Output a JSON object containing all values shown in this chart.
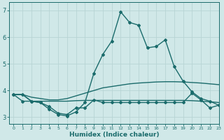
{
  "xlabel": "Humidex (Indice chaleur)",
  "bg_color": "#d0e8e8",
  "grid_color": "#b8d4d4",
  "line_color": "#1a6b6b",
  "xlim": [
    -0.5,
    23
  ],
  "ylim": [
    2.75,
    7.3
  ],
  "xticks": [
    0,
    1,
    2,
    3,
    4,
    5,
    6,
    7,
    8,
    9,
    10,
    11,
    12,
    13,
    14,
    15,
    16,
    17,
    18,
    19,
    20,
    21,
    22,
    23
  ],
  "yticks": [
    3,
    4,
    5,
    6,
    7
  ],
  "lines": [
    {
      "x": [
        0,
        1,
        2,
        3,
        4,
        5,
        6,
        7,
        8,
        9,
        10,
        11,
        12,
        13,
        14,
        15,
        16,
        17,
        18,
        19,
        20,
        21,
        22,
        23
      ],
      "y": [
        3.85,
        3.85,
        3.6,
        3.55,
        3.3,
        3.1,
        3.05,
        3.2,
        3.55,
        4.65,
        5.35,
        5.85,
        6.95,
        6.55,
        6.45,
        5.6,
        5.65,
        5.9,
        4.9,
        4.35,
        3.95,
        3.7,
        3.6,
        3.45
      ],
      "marker": "D",
      "markersize": 2.0,
      "linewidth": 1.0
    },
    {
      "x": [
        0,
        1,
        2,
        3,
        4,
        5,
        6,
        7,
        8,
        9,
        10,
        11,
        12,
        13,
        14,
        15,
        16,
        17,
        18,
        19,
        20,
        21,
        22,
        23
      ],
      "y": [
        3.85,
        3.85,
        3.75,
        3.7,
        3.65,
        3.65,
        3.7,
        3.8,
        3.9,
        4.0,
        4.1,
        4.15,
        4.2,
        4.25,
        4.28,
        4.3,
        4.32,
        4.33,
        4.33,
        4.32,
        4.3,
        4.28,
        4.25,
        4.22
      ],
      "marker": null,
      "markersize": 0,
      "linewidth": 1.0
    },
    {
      "x": [
        0,
        1,
        2,
        3,
        4,
        5,
        6,
        7,
        8,
        9,
        10,
        11,
        12,
        13,
        14,
        15,
        16,
        17,
        18,
        19,
        20,
        21,
        22,
        23
      ],
      "y": [
        3.85,
        3.85,
        3.6,
        3.6,
        3.6,
        3.6,
        3.6,
        3.62,
        3.63,
        3.63,
        3.63,
        3.63,
        3.63,
        3.63,
        3.63,
        3.63,
        3.63,
        3.63,
        3.63,
        3.63,
        3.62,
        3.6,
        3.58,
        3.55
      ],
      "marker": null,
      "markersize": 0,
      "linewidth": 1.0
    },
    {
      "x": [
        0,
        1,
        2,
        3,
        4,
        5,
        6,
        7,
        8,
        9,
        10,
        11,
        12,
        13,
        14,
        15,
        16,
        17,
        18,
        19,
        20,
        21,
        22,
        23
      ],
      "y": [
        3.85,
        3.6,
        3.6,
        3.55,
        3.4,
        3.15,
        3.1,
        3.35,
        3.35,
        3.65,
        3.55,
        3.55,
        3.55,
        3.55,
        3.55,
        3.55,
        3.55,
        3.55,
        3.55,
        3.55,
        3.9,
        3.65,
        3.35,
        3.45
      ],
      "marker": "D",
      "markersize": 2.0,
      "linewidth": 1.0
    }
  ]
}
